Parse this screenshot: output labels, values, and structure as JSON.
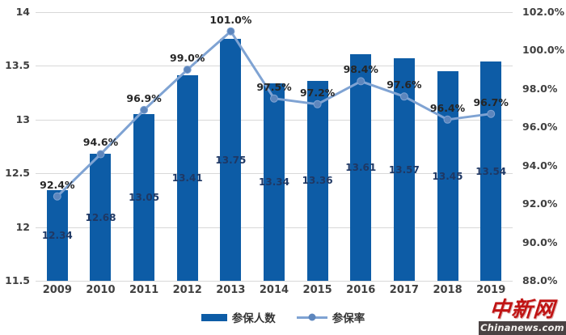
{
  "watermark": {
    "logo_text": "中新网",
    "site_text": "Chinanews.com"
  },
  "chart_data": {
    "type": "combo",
    "title": "",
    "categories": [
      "2009",
      "2010",
      "2011",
      "2012",
      "2013",
      "2014",
      "2015",
      "2016",
      "2017",
      "2018",
      "2019"
    ],
    "series": [
      {
        "name": "参保人数",
        "type": "bar",
        "axis": "left",
        "values": [
          12.34,
          12.68,
          13.05,
          13.41,
          13.75,
          13.34,
          13.36,
          13.61,
          13.57,
          13.45,
          13.54
        ],
        "labels": [
          "12.34",
          "12.68",
          "13.05",
          "13.41",
          "13.75",
          "13.34",
          "13.36",
          "13.61",
          "13.57",
          "13.45",
          "13.54"
        ]
      },
      {
        "name": "参保率",
        "type": "line",
        "axis": "right",
        "values": [
          92.4,
          94.6,
          96.9,
          99.0,
          101.0,
          97.5,
          97.2,
          98.4,
          97.6,
          96.4,
          96.7
        ],
        "labels": [
          "92.4%",
          "94.6%",
          "96.9%",
          "99.0%",
          "101.0%",
          "97.5%",
          "97.2%",
          "98.4%",
          "97.6%",
          "96.4%",
          "96.7%"
        ]
      }
    ],
    "left_axis": {
      "min": 11.5,
      "max": 14,
      "step": 0.5,
      "tick_labels": [
        "14",
        "13.5",
        "13",
        "12.5",
        "12",
        "11.5"
      ]
    },
    "right_axis": {
      "min": 88,
      "max": 102,
      "step": 2,
      "tick_labels": [
        "102.0%",
        "100.0%",
        "98.0%",
        "96.0%",
        "94.0%",
        "92.0%",
        "90.0%",
        "88.0%"
      ]
    },
    "grid": true,
    "legend_position": "bottom",
    "colors": {
      "bar": "#0d5ca6",
      "line": "#7fa3d3",
      "marker": "#5d86bd",
      "bar_label": "#1f3864",
      "pct_label": "#262626",
      "axis_text": "#404040",
      "gridline": "#d8d8d8",
      "legend_text": "#333333",
      "logo_red": "#c01414",
      "strip_bg": "#4a4243",
      "strip_text": "#f5f2ef"
    }
  }
}
